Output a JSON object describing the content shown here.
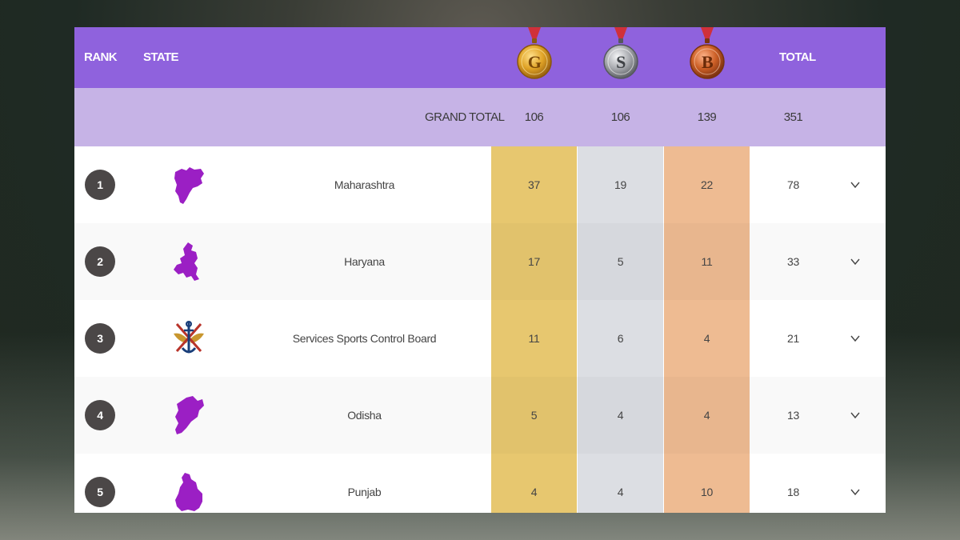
{
  "header": {
    "rank_label": "RANK",
    "state_label": "STATE",
    "total_label": "TOTAL",
    "medals": [
      {
        "letter": "G",
        "name": "gold",
        "color": "#d99b1e"
      },
      {
        "letter": "S",
        "name": "silver",
        "color": "#a7a9ad"
      },
      {
        "letter": "B",
        "name": "bronze",
        "color": "#c9642c"
      }
    ]
  },
  "grand_total": {
    "label": "GRAND TOTAL",
    "gold": "106",
    "silver": "106",
    "bronze": "139",
    "total": "351"
  },
  "rows": [
    {
      "rank": "1",
      "state": "Maharashtra",
      "icon": "maharashtra-map-icon",
      "gold": "37",
      "silver": "19",
      "bronze": "22",
      "total": "78"
    },
    {
      "rank": "2",
      "state": "Haryana",
      "icon": "haryana-map-icon",
      "gold": "17",
      "silver": "5",
      "bronze": "11",
      "total": "33"
    },
    {
      "rank": "3",
      "state": "Services Sports Control Board",
      "icon": "services-emblem-icon",
      "gold": "11",
      "silver": "6",
      "bronze": "4",
      "total": "21"
    },
    {
      "rank": "4",
      "state": "Odisha",
      "icon": "odisha-map-icon",
      "gold": "5",
      "silver": "4",
      "bronze": "4",
      "total": "13"
    },
    {
      "rank": "5",
      "state": "Punjab",
      "icon": "punjab-map-icon",
      "gold": "4",
      "silver": "4",
      "bronze": "10",
      "total": "18"
    }
  ],
  "colors": {
    "header_bg": "#8f62dd",
    "grand_total_bg": "#c6b3e6",
    "gold_col": "#e7c76f",
    "silver_col": "#dcdee3",
    "bronze_col": "#eebb92",
    "map_purple": "#9b1fc4"
  }
}
